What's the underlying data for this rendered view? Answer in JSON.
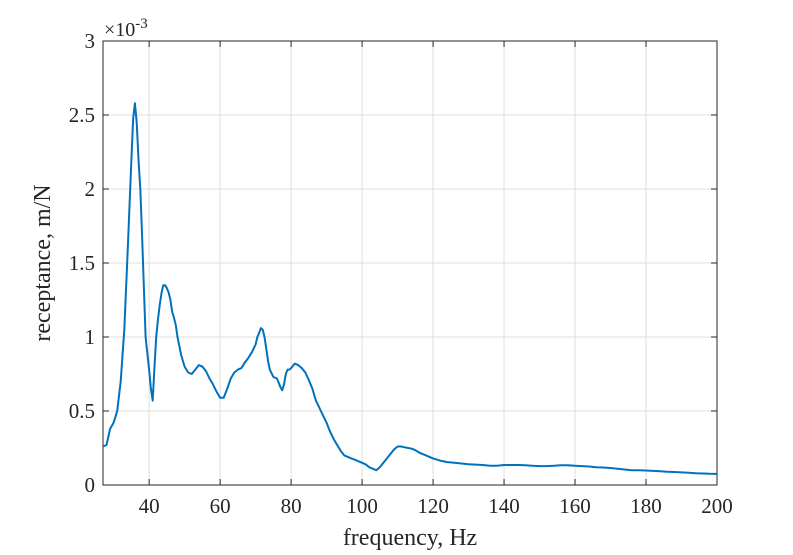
{
  "chart_data": {
    "type": "line",
    "xlabel": "frequency, Hz",
    "ylabel": "receptance, m/N",
    "xlim": [
      27,
      200
    ],
    "ylim": [
      0,
      3
    ],
    "exponent_base": "×10",
    "exponent_power": "-3",
    "xticks": [
      40,
      60,
      80,
      100,
      120,
      140,
      160,
      180,
      200
    ],
    "yticks": [
      0,
      0.5,
      1,
      1.5,
      2,
      2.5,
      3
    ],
    "ytick_labels": [
      "0",
      "0.5",
      "1",
      "1.5",
      "2",
      "2.5",
      "3"
    ],
    "grid": true,
    "line_color": "#0072BD",
    "series": [
      {
        "x": [
          27,
          28,
          29,
          30,
          31,
          32,
          33,
          34,
          35,
          35.5,
          36,
          36.5,
          37,
          37.5,
          38,
          39,
          40,
          40.5,
          41,
          41.5,
          42,
          42.5,
          43,
          43.5,
          44,
          44.5,
          45,
          45.5,
          46,
          46.5,
          47,
          47.5,
          48,
          49,
          50,
          51,
          52,
          53,
          54,
          55,
          56,
          57,
          58,
          59,
          60,
          61,
          62,
          63,
          64,
          65,
          66,
          67,
          68,
          69,
          70,
          70.5,
          71,
          71.5,
          72,
          72.5,
          73,
          73.5,
          74,
          75,
          76,
          77,
          77.5,
          78,
          78.5,
          79,
          79.5,
          80,
          81,
          82,
          83,
          84,
          85,
          86,
          87,
          88,
          89,
          90,
          91,
          92,
          93,
          94,
          95,
          96,
          97,
          98,
          99,
          100,
          101,
          102,
          103,
          104,
          105,
          106,
          107,
          108,
          109,
          110,
          111,
          112,
          113,
          114,
          115,
          116,
          117,
          118,
          119,
          120,
          122,
          124,
          126,
          128,
          130,
          132,
          134,
          136,
          138,
          140,
          142,
          144,
          146,
          148,
          150,
          152,
          154,
          156,
          158,
          160,
          162,
          164,
          166,
          168,
          170,
          172,
          174,
          176,
          178,
          180,
          182,
          184,
          186,
          188,
          190,
          192,
          194,
          196,
          198,
          200
        ],
        "y": [
          0.26,
          0.27,
          0.38,
          0.42,
          0.5,
          0.7,
          1.05,
          1.6,
          2.2,
          2.48,
          2.58,
          2.45,
          2.2,
          2.0,
          1.7,
          1.0,
          0.78,
          0.65,
          0.57,
          0.8,
          1.0,
          1.12,
          1.22,
          1.3,
          1.35,
          1.35,
          1.33,
          1.3,
          1.25,
          1.17,
          1.13,
          1.08,
          1.0,
          0.88,
          0.8,
          0.76,
          0.75,
          0.78,
          0.81,
          0.8,
          0.77,
          0.72,
          0.68,
          0.63,
          0.59,
          0.59,
          0.65,
          0.72,
          0.76,
          0.78,
          0.79,
          0.83,
          0.86,
          0.9,
          0.95,
          1.0,
          1.03,
          1.06,
          1.05,
          1.0,
          0.92,
          0.84,
          0.78,
          0.73,
          0.72,
          0.66,
          0.64,
          0.68,
          0.75,
          0.78,
          0.78,
          0.79,
          0.82,
          0.81,
          0.79,
          0.76,
          0.71,
          0.65,
          0.57,
          0.52,
          0.47,
          0.42,
          0.36,
          0.31,
          0.27,
          0.23,
          0.2,
          0.19,
          0.18,
          0.17,
          0.16,
          0.15,
          0.14,
          0.12,
          0.11,
          0.1,
          0.12,
          0.15,
          0.18,
          0.21,
          0.24,
          0.26,
          0.26,
          0.255,
          0.25,
          0.245,
          0.235,
          0.22,
          0.21,
          0.2,
          0.19,
          0.18,
          0.165,
          0.155,
          0.15,
          0.145,
          0.14,
          0.138,
          0.135,
          0.13,
          0.13,
          0.135,
          0.135,
          0.135,
          0.133,
          0.13,
          0.128,
          0.128,
          0.13,
          0.133,
          0.133,
          0.13,
          0.128,
          0.125,
          0.12,
          0.118,
          0.115,
          0.11,
          0.105,
          0.1,
          0.1,
          0.098,
          0.095,
          0.093,
          0.09,
          0.088,
          0.085,
          0.083,
          0.08,
          0.078,
          0.076,
          0.075
        ]
      }
    ]
  }
}
